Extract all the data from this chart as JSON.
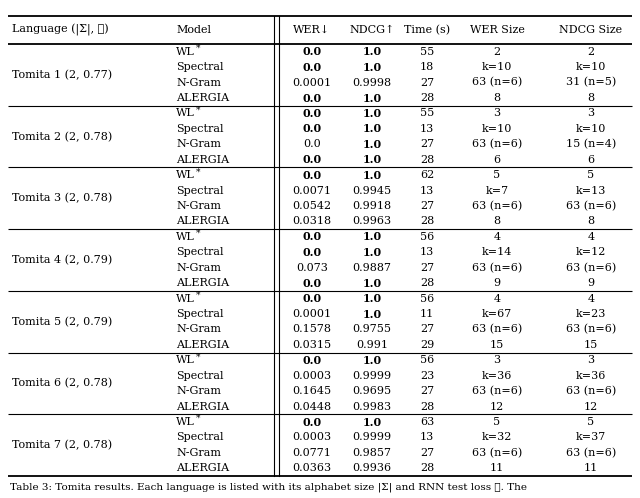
{
  "columns": [
    "Language (|Σ|, ℓ)",
    "Model",
    "WER↓",
    "NDCG↑",
    "Time (s)",
    "WER Size",
    "NDCG Size"
  ],
  "groups": [
    {
      "lang": "Tomita 1 (2, 0.77)",
      "rows": [
        {
          "model": "WL*",
          "wer": "bold:0.0",
          "ndcg": "bold:1.0",
          "time": "55",
          "wer_size": "2",
          "ndcg_size": "2"
        },
        {
          "model": "Spectral",
          "wer": "bold:0.0",
          "ndcg": "bold:1.0",
          "time": "18",
          "wer_size": "k=10",
          "ndcg_size": "k=10"
        },
        {
          "model": "N-Gram",
          "wer": "0.0001",
          "ndcg": "0.9998",
          "time": "27",
          "wer_size": "63 (n=6)",
          "ndcg_size": "31 (n=5)"
        },
        {
          "model": "ALERGIA",
          "wer": "bold:0.0",
          "ndcg": "bold:1.0",
          "time": "28",
          "wer_size": "8",
          "ndcg_size": "8"
        }
      ]
    },
    {
      "lang": "Tomita 2 (2, 0.78)",
      "rows": [
        {
          "model": "WL*",
          "wer": "bold:0.0",
          "ndcg": "bold:1.0",
          "time": "55",
          "wer_size": "3",
          "ndcg_size": "3"
        },
        {
          "model": "Spectral",
          "wer": "bold:0.0",
          "ndcg": "bold:1.0",
          "time": "13",
          "wer_size": "k=10",
          "ndcg_size": "k=10"
        },
        {
          "model": "N-Gram",
          "wer": "0.0",
          "ndcg": "bold:1.0",
          "time": "27",
          "wer_size": "63 (n=6)",
          "ndcg_size": "15 (n=4)"
        },
        {
          "model": "ALERGIA",
          "wer": "bold:0.0",
          "ndcg": "bold:1.0",
          "time": "28",
          "wer_size": "6",
          "ndcg_size": "6"
        }
      ]
    },
    {
      "lang": "Tomita 3 (2, 0.78)",
      "rows": [
        {
          "model": "WL*",
          "wer": "bold:0.0",
          "ndcg": "bold:1.0",
          "time": "62",
          "wer_size": "5",
          "ndcg_size": "5"
        },
        {
          "model": "Spectral",
          "wer": "0.0071",
          "ndcg": "0.9945",
          "time": "13",
          "wer_size": "k=7",
          "ndcg_size": "k=13"
        },
        {
          "model": "N-Gram",
          "wer": "0.0542",
          "ndcg": "0.9918",
          "time": "27",
          "wer_size": "63 (n=6)",
          "ndcg_size": "63 (n=6)"
        },
        {
          "model": "ALERGIA",
          "wer": "0.0318",
          "ndcg": "0.9963",
          "time": "28",
          "wer_size": "8",
          "ndcg_size": "8"
        }
      ]
    },
    {
      "lang": "Tomita 4 (2, 0.79)",
      "rows": [
        {
          "model": "WL*",
          "wer": "bold:0.0",
          "ndcg": "bold:1.0",
          "time": "56",
          "wer_size": "4",
          "ndcg_size": "4"
        },
        {
          "model": "Spectral",
          "wer": "bold:0.0",
          "ndcg": "bold:1.0",
          "time": "13",
          "wer_size": "k=14",
          "ndcg_size": "k=12"
        },
        {
          "model": "N-Gram",
          "wer": "0.073",
          "ndcg": "0.9887",
          "time": "27",
          "wer_size": "63 (n=6)",
          "ndcg_size": "63 (n=6)"
        },
        {
          "model": "ALERGIA",
          "wer": "bold:0.0",
          "ndcg": "bold:1.0",
          "time": "28",
          "wer_size": "9",
          "ndcg_size": "9"
        }
      ]
    },
    {
      "lang": "Tomita 5 (2, 0.79)",
      "rows": [
        {
          "model": "WL*",
          "wer": "bold:0.0",
          "ndcg": "bold:1.0",
          "time": "56",
          "wer_size": "4",
          "ndcg_size": "4"
        },
        {
          "model": "Spectral",
          "wer": "0.0001",
          "ndcg": "bold:1.0",
          "time": "11",
          "wer_size": "k=67",
          "ndcg_size": "k=23"
        },
        {
          "model": "N-Gram",
          "wer": "0.1578",
          "ndcg": "0.9755",
          "time": "27",
          "wer_size": "63 (n=6)",
          "ndcg_size": "63 (n=6)"
        },
        {
          "model": "ALERGIA",
          "wer": "0.0315",
          "ndcg": "0.991",
          "time": "29",
          "wer_size": "15",
          "ndcg_size": "15"
        }
      ]
    },
    {
      "lang": "Tomita 6 (2, 0.78)",
      "rows": [
        {
          "model": "WL*",
          "wer": "bold:0.0",
          "ndcg": "bold:1.0",
          "time": "56",
          "wer_size": "3",
          "ndcg_size": "3"
        },
        {
          "model": "Spectral",
          "wer": "0.0003",
          "ndcg": "0.9999",
          "time": "23",
          "wer_size": "k=36",
          "ndcg_size": "k=36"
        },
        {
          "model": "N-Gram",
          "wer": "0.1645",
          "ndcg": "0.9695",
          "time": "27",
          "wer_size": "63 (n=6)",
          "ndcg_size": "63 (n=6)"
        },
        {
          "model": "ALERGIA",
          "wer": "0.0448",
          "ndcg": "0.9983",
          "time": "28",
          "wer_size": "12",
          "ndcg_size": "12"
        }
      ]
    },
    {
      "lang": "Tomita 7 (2, 0.78)",
      "rows": [
        {
          "model": "WL*",
          "wer": "bold:0.0",
          "ndcg": "bold:1.0",
          "time": "63",
          "wer_size": "5",
          "ndcg_size": "5"
        },
        {
          "model": "Spectral",
          "wer": "0.0003",
          "ndcg": "0.9999",
          "time": "13",
          "wer_size": "k=32",
          "ndcg_size": "k=37"
        },
        {
          "model": "N-Gram",
          "wer": "0.0771",
          "ndcg": "0.9857",
          "time": "27",
          "wer_size": "63 (n=6)",
          "ndcg_size": "63 (n=6)"
        },
        {
          "model": "ALERGIA",
          "wer": "0.0363",
          "ndcg": "0.9936",
          "time": "28",
          "wer_size": "11",
          "ndcg_size": "11"
        }
      ]
    }
  ],
  "font_size": 8.0,
  "caption": "Table 3: Tomita results. Each language is listed with its alphabet size |Σ| and RNN test loss ℓ. The"
}
